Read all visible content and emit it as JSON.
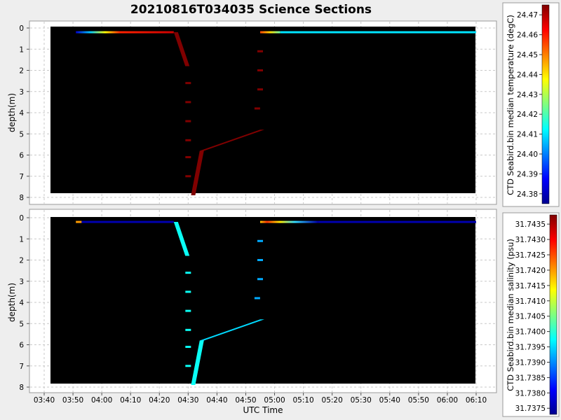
{
  "title": "20210816T034035 Science Sections",
  "chart_data": [
    {
      "type": "heatmap",
      "ylabel": "depth(m)",
      "ylim": [
        0,
        8
      ],
      "y_ticks": [
        "0",
        "1",
        "2",
        "3",
        "4",
        "5",
        "6",
        "7",
        "8"
      ],
      "y_inverted": true,
      "colorbar": {
        "label": "CTD Seabird.bin median temperature (degC)",
        "ticks": [
          "24.47",
          "24.46",
          "24.45",
          "24.44",
          "24.43",
          "24.42",
          "24.41",
          "24.40",
          "24.39",
          "24.38"
        ],
        "range": [
          24.375,
          24.475
        ],
        "colormap": "jet"
      },
      "segments": [
        {
          "x0": "03:51",
          "x1": "04:25",
          "d0": 0.2,
          "d1": 0.2,
          "gradient": "blue-to-red",
          "min": 24.375,
          "max": 24.475
        },
        {
          "x0": "04:25",
          "x1": "04:29",
          "d0": 0.2,
          "d1": 1.8,
          "value": 24.475
        },
        {
          "x0": "04:34",
          "x1": "04:55",
          "d0": 5.8,
          "d1": 4.8,
          "value": 24.475
        },
        {
          "x0": "04:31",
          "x1": "04:34",
          "d0": 7.9,
          "d1": 5.8,
          "value": 24.475
        },
        {
          "x0": "04:55",
          "x1": "05:02",
          "d0": 0.2,
          "d1": 0.2,
          "gradient": "red-to-yellow",
          "min": 24.43,
          "max": 24.475
        },
        {
          "x0": "05:02",
          "x1": "06:10",
          "d0": 0.2,
          "d1": 0.2,
          "value": 24.41
        }
      ],
      "points": [
        {
          "t": "04:30",
          "d": 2.6,
          "value": 24.475
        },
        {
          "t": "04:30",
          "d": 3.5,
          "value": 24.475
        },
        {
          "t": "04:30",
          "d": 4.4,
          "value": 24.475
        },
        {
          "t": "04:30",
          "d": 5.3,
          "value": 24.475
        },
        {
          "t": "04:30",
          "d": 6.1,
          "value": 24.475
        },
        {
          "t": "04:30",
          "d": 7.0,
          "value": 24.475
        },
        {
          "t": "04:55",
          "d": 1.1,
          "value": 24.475
        },
        {
          "t": "04:55",
          "d": 2.0,
          "value": 24.475
        },
        {
          "t": "04:55",
          "d": 2.9,
          "value": 24.475
        },
        {
          "t": "04:54",
          "d": 3.8,
          "value": 24.475
        }
      ]
    },
    {
      "type": "heatmap",
      "xlabel": "UTC Time",
      "ylabel": "depth(m)",
      "x_ticks": [
        "03:40",
        "03:50",
        "04:00",
        "04:10",
        "04:20",
        "04:30",
        "04:40",
        "04:50",
        "05:00",
        "05:10",
        "05:20",
        "05:30",
        "05:40",
        "05:50",
        "06:00",
        "06:10"
      ],
      "ylim": [
        0,
        8
      ],
      "y_ticks": [
        "0",
        "1",
        "2",
        "3",
        "4",
        "5",
        "6",
        "7",
        "8"
      ],
      "y_inverted": true,
      "colorbar": {
        "label": "CTD Seabird.bin median salinity (psu)",
        "ticks": [
          "31.7435",
          "31.7430",
          "31.7425",
          "31.7420",
          "31.7415",
          "31.7410",
          "31.7405",
          "31.7400",
          "31.7395",
          "31.7390",
          "31.7385",
          "31.7380",
          "31.7375"
        ],
        "range": [
          31.7373,
          31.7438
        ],
        "colormap": "jet"
      },
      "segments": [
        {
          "x0": "03:51",
          "x1": "03:53",
          "d0": 0.2,
          "d1": 0.2,
          "value": 31.742
        },
        {
          "x0": "03:53",
          "x1": "04:25",
          "d0": 0.2,
          "d1": 0.2,
          "value": 31.7376
        },
        {
          "x0": "04:25",
          "x1": "04:29",
          "d0": 0.2,
          "d1": 1.8,
          "value": 31.7398
        },
        {
          "x0": "04:34",
          "x1": "04:55",
          "d0": 5.8,
          "d1": 4.8,
          "value": 31.7395
        },
        {
          "x0": "04:31",
          "x1": "04:34",
          "d0": 7.9,
          "d1": 5.8,
          "value": 31.7398
        },
        {
          "x0": "04:55",
          "x1": "05:15",
          "d0": 0.2,
          "d1": 0.2,
          "gradient": "yellow-red-to-blue",
          "min": 31.7376,
          "max": 31.7432
        },
        {
          "x0": "05:15",
          "x1": "06:10",
          "d0": 0.2,
          "d1": 0.2,
          "value": 31.7376
        }
      ],
      "points": [
        {
          "t": "04:30",
          "d": 2.6,
          "value": 31.7398
        },
        {
          "t": "04:30",
          "d": 3.5,
          "value": 31.7398
        },
        {
          "t": "04:30",
          "d": 4.4,
          "value": 31.7398
        },
        {
          "t": "04:30",
          "d": 5.3,
          "value": 31.7398
        },
        {
          "t": "04:30",
          "d": 6.1,
          "value": 31.7398
        },
        {
          "t": "04:30",
          "d": 7.0,
          "value": 31.7398
        },
        {
          "t": "04:55",
          "d": 1.1,
          "value": 31.7392
        },
        {
          "t": "04:55",
          "d": 2.0,
          "value": 31.7392
        },
        {
          "t": "04:55",
          "d": 2.9,
          "value": 31.7392
        },
        {
          "t": "04:54",
          "d": 3.8,
          "value": 31.7392
        }
      ]
    }
  ]
}
